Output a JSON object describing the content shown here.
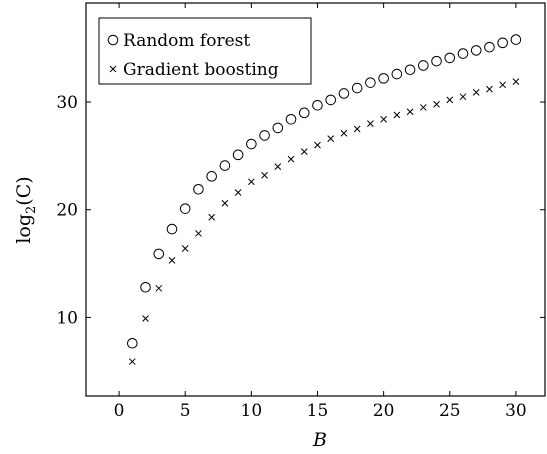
{
  "chart_data": {
    "type": "scatter",
    "title": "",
    "xlabel": "B",
    "ylabel_base": "log",
    "ylabel_subscript": "2",
    "ylabel_arg": "(C)",
    "xlim": [
      -2.5,
      32.2
    ],
    "ylim": [
      2.7,
      39.2
    ],
    "xticks": [
      0,
      5,
      10,
      15,
      20,
      25,
      30
    ],
    "yticks": [
      10,
      20,
      30
    ],
    "xtick_labels": [
      "0",
      "5",
      "10",
      "15",
      "20",
      "25",
      "30"
    ],
    "ytick_labels": [
      "10",
      "20",
      "30"
    ],
    "grid": false,
    "legend_position": "top-left",
    "series": [
      {
        "name": "Random forest",
        "marker": "circle",
        "x": [
          1,
          2,
          3,
          4,
          5,
          6,
          7,
          8,
          9,
          10,
          11,
          12,
          13,
          14,
          15,
          16,
          17,
          18,
          19,
          20,
          21,
          22,
          23,
          24,
          25,
          26,
          27,
          28,
          29,
          30
        ],
        "y": [
          7.6,
          12.8,
          15.9,
          18.2,
          20.1,
          21.9,
          23.1,
          24.1,
          25.1,
          26.1,
          26.9,
          27.6,
          28.4,
          29.0,
          29.7,
          30.2,
          30.8,
          31.3,
          31.8,
          32.2,
          32.6,
          33.0,
          33.4,
          33.8,
          34.1,
          34.5,
          34.8,
          35.1,
          35.5,
          35.8
        ]
      },
      {
        "name": "Gradient boosting",
        "marker": "cross",
        "x": [
          1,
          2,
          3,
          4,
          5,
          6,
          7,
          8,
          9,
          10,
          11,
          12,
          13,
          14,
          15,
          16,
          17,
          18,
          19,
          20,
          21,
          22,
          23,
          24,
          25,
          26,
          27,
          28,
          29,
          30
        ],
        "y": [
          5.9,
          9.9,
          12.7,
          15.3,
          16.4,
          17.8,
          19.3,
          20.6,
          21.6,
          22.6,
          23.2,
          24.0,
          24.7,
          25.4,
          26.0,
          26.6,
          27.1,
          27.5,
          28.0,
          28.4,
          28.8,
          29.1,
          29.5,
          29.8,
          30.2,
          30.5,
          30.9,
          31.2,
          31.6,
          31.9
        ]
      }
    ]
  }
}
